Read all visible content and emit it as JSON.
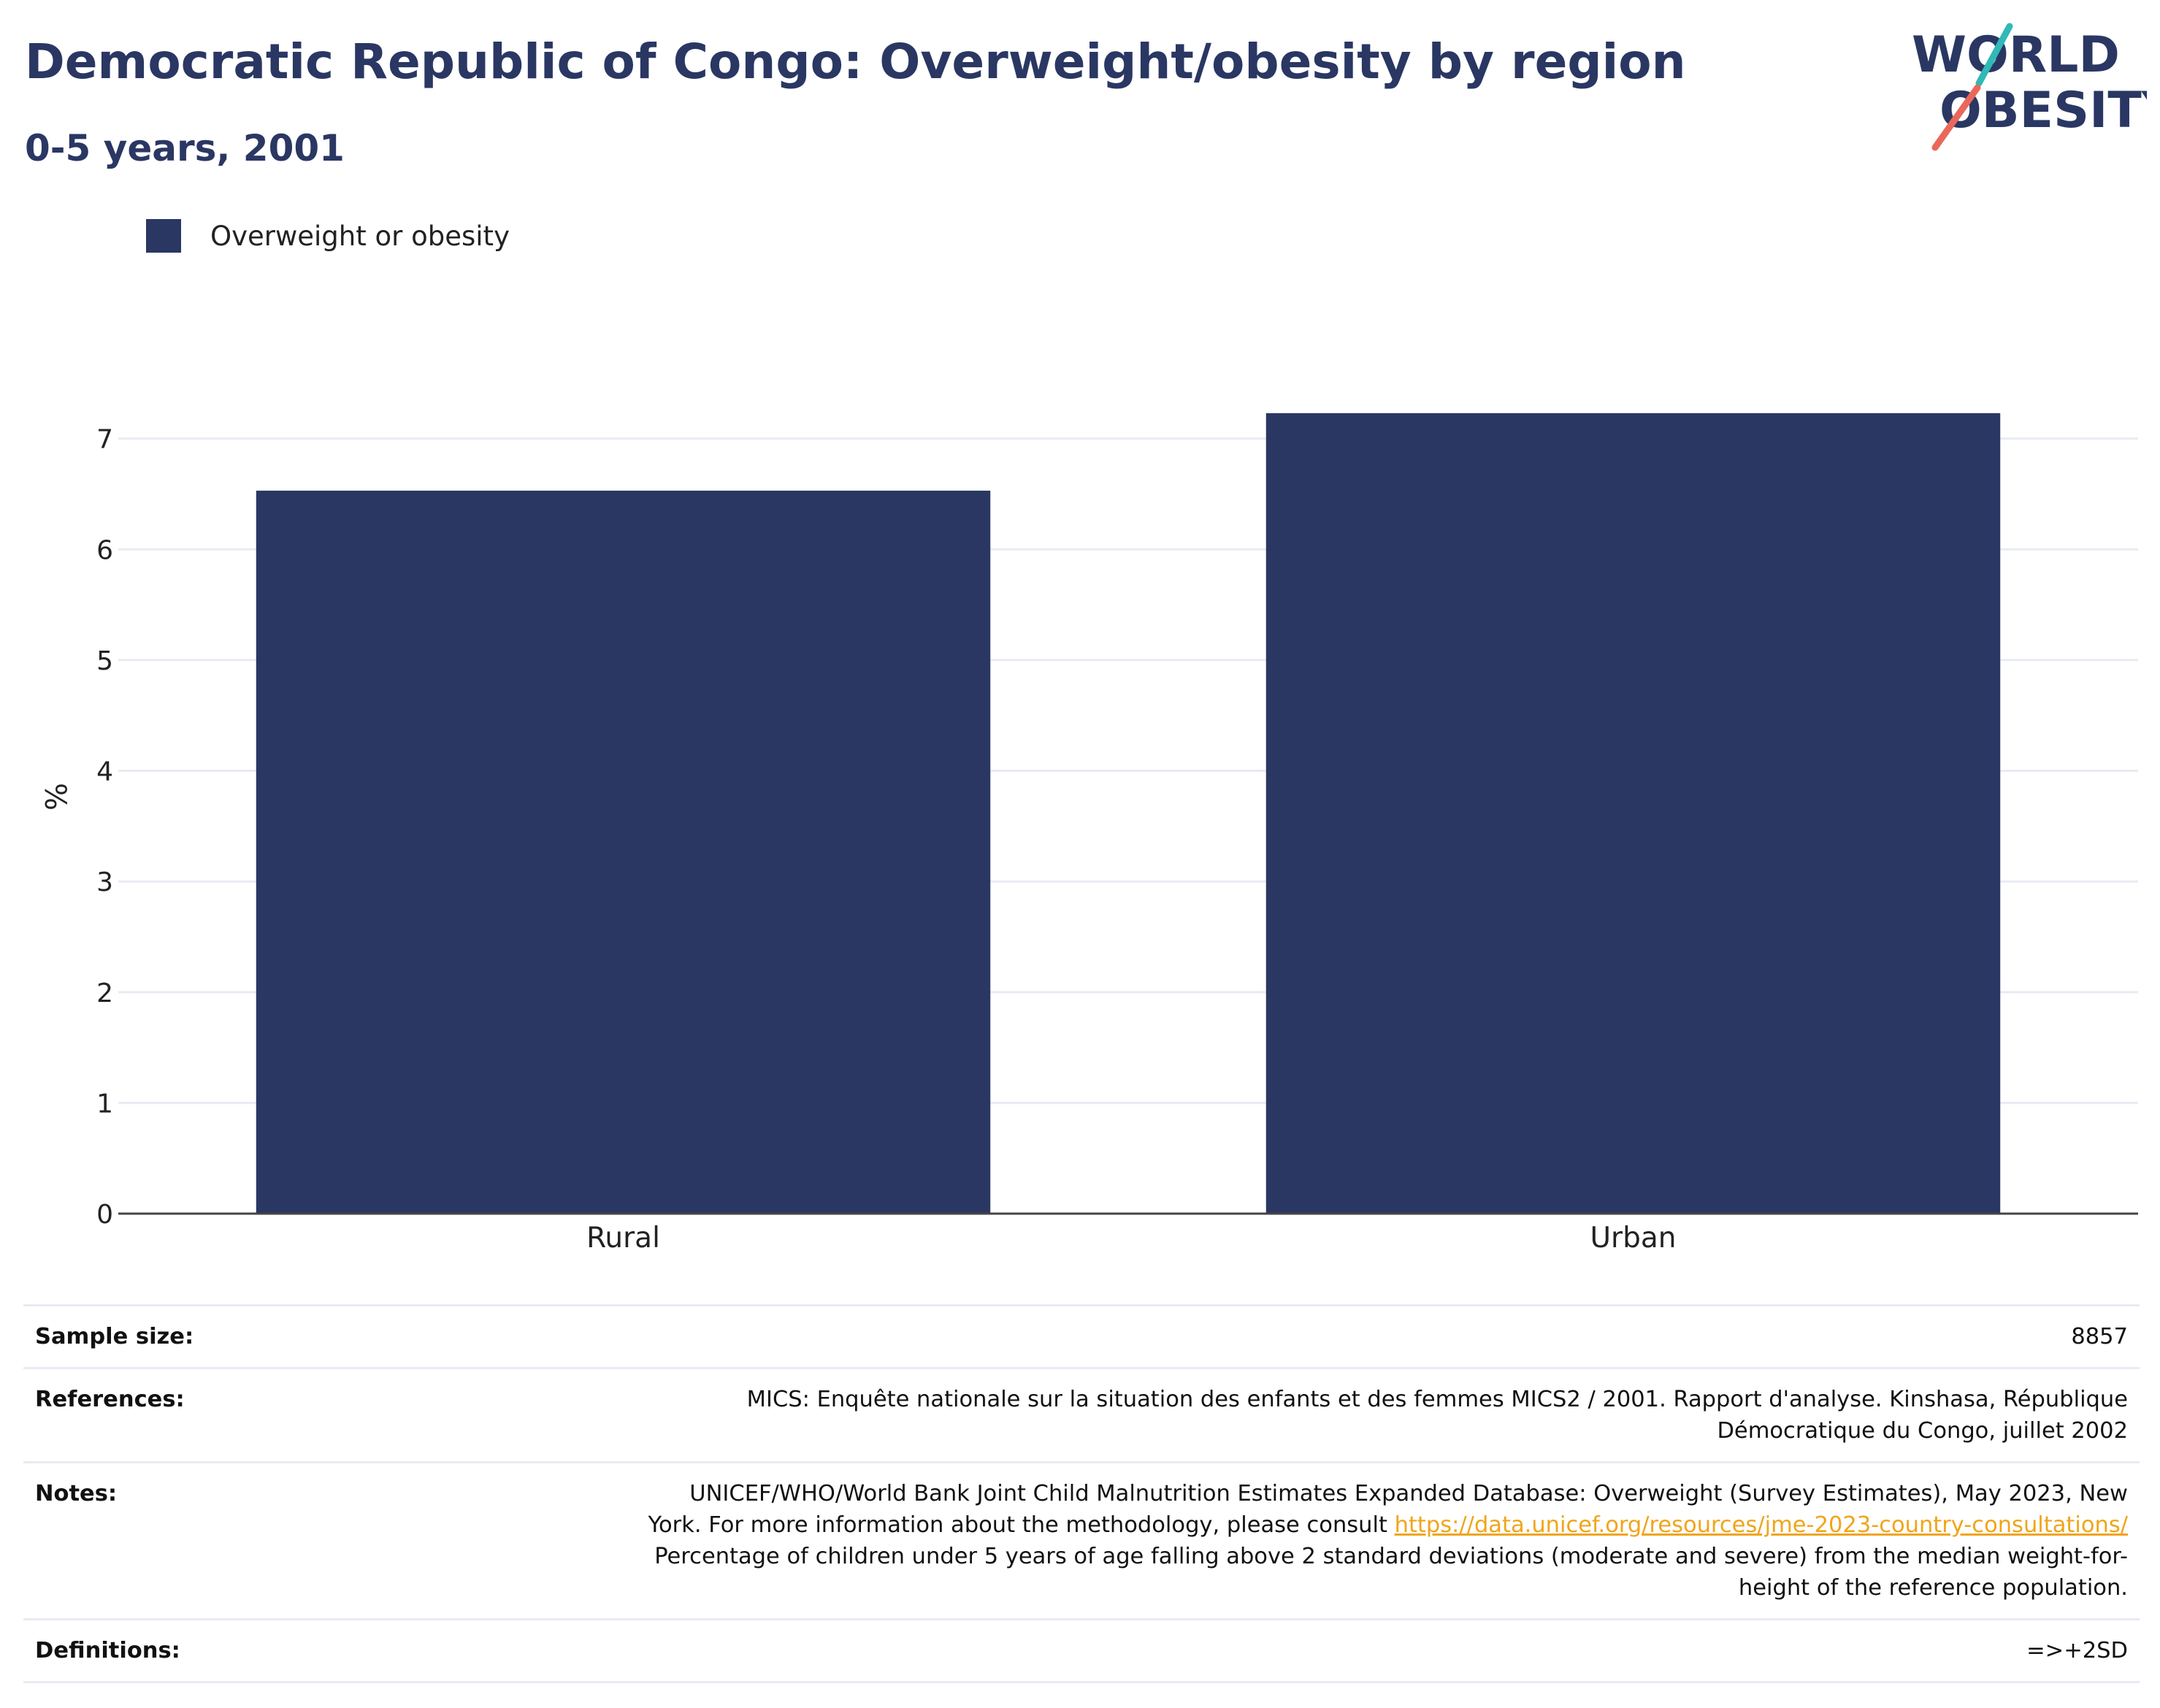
{
  "header": {
    "title": "Democratic Republic of Congo: Overweight/obesity by region",
    "subtitle": "0-5 years, 2001"
  },
  "logo": {
    "line1": "WORLD",
    "line2": "OBESITY",
    "accent_teal": "#2fb9b7",
    "accent_coral": "#e9685b",
    "text_color": "#2a3763"
  },
  "legend": {
    "label": "Overweight or obesity",
    "color": "#2a3763"
  },
  "chart_data": {
    "type": "bar",
    "categories": [
      "Rural",
      "Urban"
    ],
    "series": [
      {
        "name": "Overweight or obesity",
        "values": [
          6.53,
          7.23
        ],
        "color": "#2a3763"
      }
    ],
    "xlabel": "",
    "ylabel": "%",
    "ylim": [
      0,
      7.4
    ],
    "yticks": [
      0,
      1,
      2,
      3,
      4,
      5,
      6,
      7
    ],
    "grid": true,
    "legend_position": "top-left"
  },
  "info": {
    "sample_size": {
      "label": "Sample size:",
      "value": "8857"
    },
    "references": {
      "label": "References:",
      "line1": "MICS: Enquête nationale sur la situation des enfants et des femmes MICS2 / 2001. Rapport d'analyse. Kinshasa, République",
      "line2": "Démocratique du Congo, juillet 2002"
    },
    "notes": {
      "label": "Notes:",
      "line1": "UNICEF/WHO/World Bank Joint Child Malnutrition Estimates Expanded Database: Overweight (Survey Estimates), May 2023, New",
      "line2_prefix": "York. For more information about the methodology, please consult ",
      "link": "https://data.unicef.org/resources/jme-2023-country-consultations/",
      "line3": "Percentage of children under 5 years of age falling above 2 standard deviations (moderate and severe) from the median weight-for-",
      "line4": "height of the reference population."
    },
    "definitions": {
      "label": "Definitions:",
      "value": "=>+2SD"
    }
  }
}
